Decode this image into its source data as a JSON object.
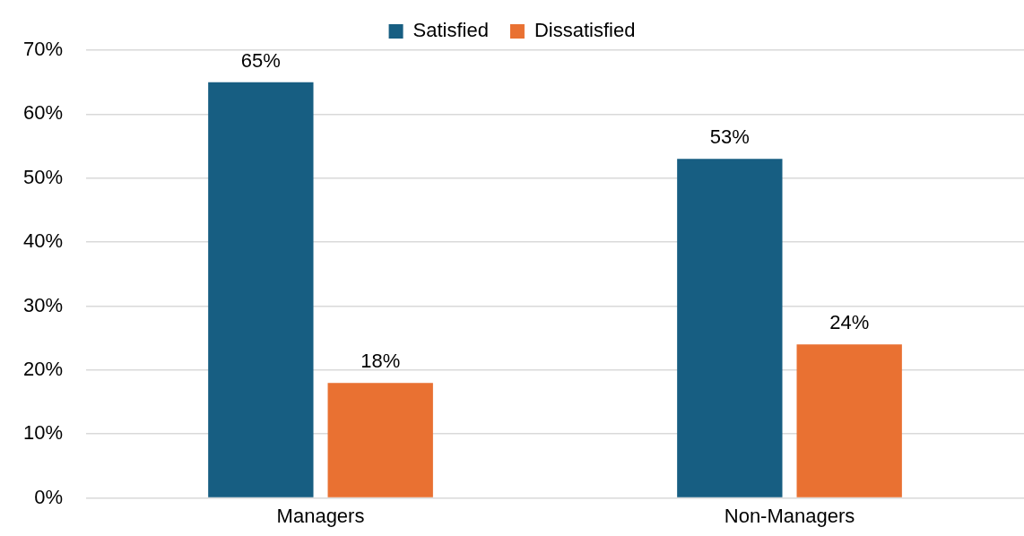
{
  "chart_data": {
    "type": "bar",
    "categories": [
      "Managers",
      "Non-Managers"
    ],
    "series": [
      {
        "name": "Satisfied",
        "color": "#175e82",
        "values": [
          65,
          53
        ],
        "value_labels": [
          "65%",
          "53%"
        ]
      },
      {
        "name": "Dissatisfied",
        "color": "#e97132",
        "values": [
          18,
          24
        ],
        "value_labels": [
          "18%",
          "24%"
        ]
      }
    ],
    "ylim": [
      0,
      70
    ],
    "yticks": [
      {
        "value": 0,
        "label": "0%"
      },
      {
        "value": 10,
        "label": "10%"
      },
      {
        "value": 20,
        "label": "20%"
      },
      {
        "value": 30,
        "label": "30%"
      },
      {
        "value": 40,
        "label": "40%"
      },
      {
        "value": 50,
        "label": "50%"
      },
      {
        "value": 60,
        "label": "60%"
      },
      {
        "value": 70,
        "label": "70%"
      }
    ],
    "grid": "y",
    "legend": "top"
  }
}
